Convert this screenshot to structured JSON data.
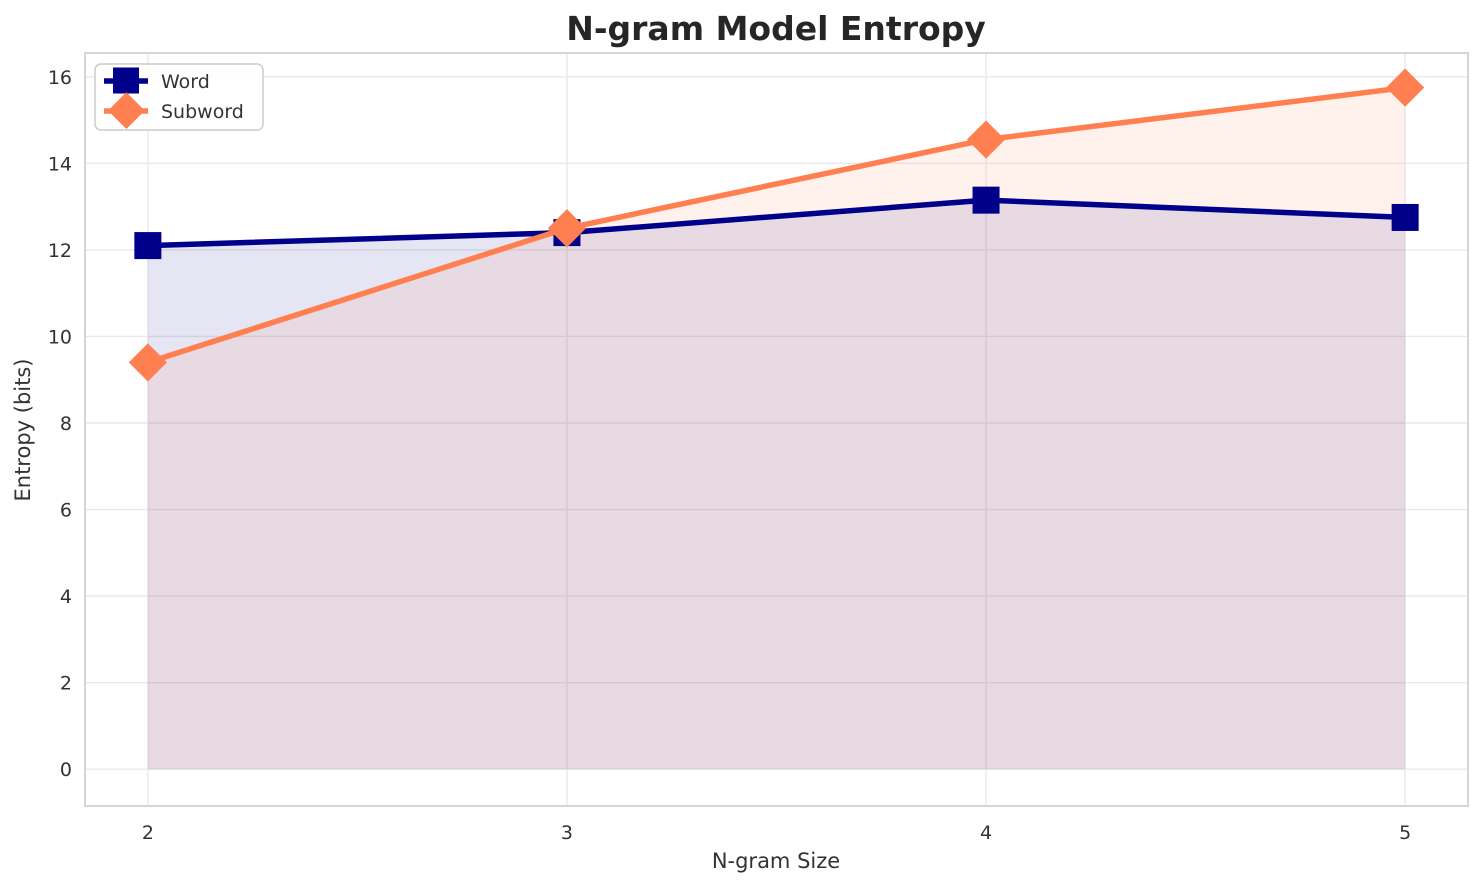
{
  "chart_data": {
    "type": "line",
    "title": "N-gram Model Entropy",
    "xlabel": "N-gram Size",
    "ylabel": "Entropy (bits)",
    "x": [
      2,
      3,
      4,
      5
    ],
    "series": [
      {
        "name": "Word",
        "color": "#00008B",
        "marker": "square",
        "values": [
          12.1,
          12.4,
          13.15,
          12.75
        ]
      },
      {
        "name": "Subword",
        "color": "#FF7F50",
        "marker": "diamond",
        "values": [
          9.4,
          12.5,
          14.55,
          15.75
        ]
      }
    ],
    "fill_to_zero": true,
    "fill_opacity": 0.1,
    "line_width": 5.5,
    "xlim": [
      1.85,
      5.15
    ],
    "ylim": [
      -0.85,
      16.55
    ],
    "xticks": [
      2,
      3,
      4,
      5
    ],
    "yticks": [
      0,
      2,
      4,
      6,
      8,
      10,
      12,
      14,
      16
    ],
    "grid": true,
    "legend_position": "upper left",
    "colors": {
      "background": "#ffffff",
      "grid": "#e9e9ec",
      "spine": "#d5d5d8",
      "tick_label": "#333333",
      "title": "#262626",
      "legend_border": "#cccccc"
    }
  }
}
